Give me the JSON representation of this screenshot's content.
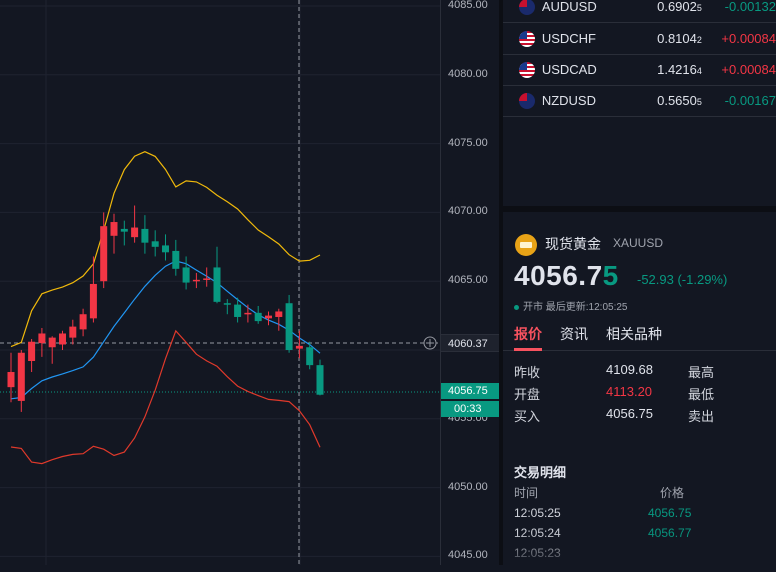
{
  "axis": {
    "labels": [
      "4085.00",
      "4080.00",
      "4075.00",
      "4070.00",
      "4065.00",
      "4060.00",
      "4055.00",
      "4050.00",
      "4045.00"
    ],
    "crosshair_price": "4060.37",
    "current_price": "4056.75",
    "countdown": "00:33"
  },
  "watchlist": [
    {
      "symbol": "AUDUSD",
      "price": "0.6902",
      "price_small": "5",
      "change": "-0.00132",
      "dir": "down",
      "flag": "au"
    },
    {
      "symbol": "USDCHF",
      "price": "0.8104",
      "price_small": "2",
      "change": "+0.00084",
      "dir": "up",
      "flag": "us"
    },
    {
      "symbol": "USDCAD",
      "price": "1.4216",
      "price_small": "4",
      "change": "+0.00084",
      "dir": "up",
      "flag": "us"
    },
    {
      "symbol": "NZDUSD",
      "price": "0.5650",
      "price_small": "5",
      "change": "-0.00167",
      "dir": "down",
      "flag": "nz"
    }
  ],
  "instrument": {
    "name": "现货黄金",
    "code": "XAUUSD",
    "price_main": "4056.7",
    "price_last": "5",
    "change": "-52.93 (-1.29%)",
    "status": "开市 最后更新:12:05:25"
  },
  "tabs": [
    "报价",
    "资讯",
    "相关品种"
  ],
  "quote": [
    {
      "label": "昨收",
      "value": "4109.68",
      "label2": "最高",
      "red": false
    },
    {
      "label": "开盘",
      "value": "4113.20",
      "label2": "最低",
      "red": true
    },
    {
      "label": "买入",
      "value": "4056.75",
      "label2": "卖出",
      "red": false
    }
  ],
  "deals": {
    "title": "交易明细",
    "col_time": "时间",
    "col_price": "价格",
    "rows": [
      {
        "time": "12:05:25",
        "price": "4056.75"
      },
      {
        "time": "12:05:24",
        "price": "4056.77"
      },
      {
        "time": "12:05:23",
        "price": ""
      }
    ]
  },
  "colors": {
    "up": "#f23645",
    "down": "#089981",
    "bb_upper": "#f0b90b",
    "bb_mid": "#2196f3",
    "bb_lower": "#e0392b"
  },
  "chart_data": {
    "type": "candlestick",
    "ylim": [
      4045,
      4085
    ],
    "ohlc": [
      {
        "o": 4057.3,
        "h": 4059.8,
        "l": 4056.2,
        "c": 4058.4
      },
      {
        "o": 4056.3,
        "h": 4060.0,
        "l": 4055.5,
        "c": 4059.8
      },
      {
        "o": 4059.2,
        "h": 4060.8,
        "l": 4058.4,
        "c": 4060.6
      },
      {
        "o": 4060.5,
        "h": 4061.6,
        "l": 4059.5,
        "c": 4061.2
      },
      {
        "o": 4060.2,
        "h": 4061.0,
        "l": 4059.0,
        "c": 4060.9
      },
      {
        "o": 4060.4,
        "h": 4061.4,
        "l": 4060.0,
        "c": 4061.2
      },
      {
        "o": 4060.9,
        "h": 4062.2,
        "l": 4060.4,
        "c": 4061.7
      },
      {
        "o": 4061.5,
        "h": 4063.0,
        "l": 4061.0,
        "c": 4062.6
      },
      {
        "o": 4062.3,
        "h": 4066.8,
        "l": 4062.0,
        "c": 4064.8
      },
      {
        "o": 4065.0,
        "h": 4070.0,
        "l": 4064.5,
        "c": 4069.0
      },
      {
        "o": 4068.3,
        "h": 4069.9,
        "l": 4067.0,
        "c": 4069.3
      },
      {
        "o": 4068.8,
        "h": 4069.4,
        "l": 4067.6,
        "c": 4068.6
      },
      {
        "o": 4068.2,
        "h": 4070.5,
        "l": 4067.8,
        "c": 4068.9
      },
      {
        "o": 4068.8,
        "h": 4069.8,
        "l": 4067.0,
        "c": 4067.8
      },
      {
        "o": 4067.9,
        "h": 4068.7,
        "l": 4066.8,
        "c": 4067.5
      },
      {
        "o": 4067.6,
        "h": 4068.4,
        "l": 4066.5,
        "c": 4067.1
      },
      {
        "o": 4067.2,
        "h": 4068.0,
        "l": 4065.4,
        "c": 4065.9
      },
      {
        "o": 4066.0,
        "h": 4066.8,
        "l": 4064.4,
        "c": 4064.9
      },
      {
        "o": 4065.0,
        "h": 4065.6,
        "l": 4064.5,
        "c": 4065.1
      },
      {
        "o": 4065.1,
        "h": 4066.0,
        "l": 4064.6,
        "c": 4065.2
      },
      {
        "o": 4066.0,
        "h": 4067.5,
        "l": 4063.4,
        "c": 4063.5
      },
      {
        "o": 4063.4,
        "h": 4063.7,
        "l": 4062.6,
        "c": 4063.3
      },
      {
        "o": 4063.3,
        "h": 4063.8,
        "l": 4062.0,
        "c": 4062.4
      },
      {
        "o": 4062.6,
        "h": 4063.3,
        "l": 4062.0,
        "c": 4062.7
      },
      {
        "o": 4062.7,
        "h": 4063.2,
        "l": 4061.9,
        "c": 4062.1
      },
      {
        "o": 4062.3,
        "h": 4062.8,
        "l": 4061.8,
        "c": 4062.5
      },
      {
        "o": 4062.4,
        "h": 4063.0,
        "l": 4061.4,
        "c": 4062.8
      },
      {
        "o": 4063.4,
        "h": 4064.0,
        "l": 4059.8,
        "c": 4060.0
      },
      {
        "o": 4060.1,
        "h": 4061.4,
        "l": 4059.4,
        "c": 4060.3
      },
      {
        "o": 4060.2,
        "h": 4060.6,
        "l": 4058.6,
        "c": 4058.9
      },
      {
        "o": 4058.9,
        "h": 4059.3,
        "l": 4056.7,
        "c": 4056.75
      }
    ]
  }
}
